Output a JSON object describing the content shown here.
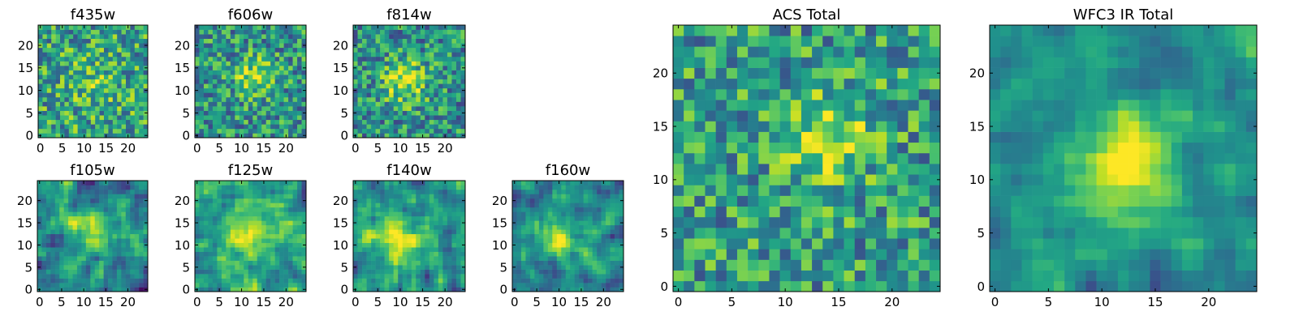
{
  "chart_data": [
    {
      "type": "heatmap",
      "title": "f435w",
      "x_ticks": [
        0,
        5,
        10,
        15,
        20
      ],
      "y_ticks": [
        0,
        5,
        10,
        15,
        20
      ],
      "xlim": [
        -0.5,
        24.5
      ],
      "ylim": [
        -0.5,
        24.5
      ],
      "grid_size": 25,
      "colormap": "viridis",
      "source": {
        "cx": 12,
        "cy": 12,
        "sigma": 4,
        "amp": 0.15,
        "seed": 11,
        "noise": 0.32,
        "base": 0.58,
        "smooth": 0
      }
    },
    {
      "type": "heatmap",
      "title": "f606w",
      "x_ticks": [
        0,
        5,
        10,
        15,
        20
      ],
      "y_ticks": [
        0,
        5,
        10,
        15,
        20
      ],
      "xlim": [
        -0.5,
        24.5
      ],
      "ylim": [
        -0.5,
        24.5
      ],
      "grid_size": 25,
      "colormap": "viridis",
      "source": {
        "cx": 13,
        "cy": 13,
        "sigma": 3,
        "amp": 0.35,
        "seed": 23,
        "noise": 0.3,
        "base": 0.52,
        "smooth": 0
      }
    },
    {
      "type": "heatmap",
      "title": "f814w",
      "x_ticks": [
        0,
        5,
        10,
        15,
        20
      ],
      "y_ticks": [
        0,
        5,
        10,
        15,
        20
      ],
      "xlim": [
        -0.5,
        24.5
      ],
      "ylim": [
        -0.5,
        24.5
      ],
      "grid_size": 25,
      "colormap": "viridis",
      "source": {
        "cx": 11,
        "cy": 12,
        "sigma": 3.5,
        "amp": 0.4,
        "seed": 37,
        "noise": 0.3,
        "base": 0.5,
        "smooth": 0
      }
    },
    {
      "type": "heatmap",
      "title": "f105w",
      "x_ticks": [
        0,
        5,
        10,
        15,
        20
      ],
      "y_ticks": [
        0,
        5,
        10,
        15,
        20
      ],
      "xlim": [
        -0.5,
        24.5
      ],
      "ylim": [
        -0.5,
        24.5
      ],
      "grid_size": 25,
      "colormap": "viridis",
      "source": {
        "cx": 13,
        "cy": 13,
        "sigma": 3.5,
        "amp": 0.45,
        "seed": 41,
        "noise": 0.35,
        "base": 0.45,
        "smooth": 1
      }
    },
    {
      "type": "heatmap",
      "title": "f125w",
      "x_ticks": [
        0,
        5,
        10,
        15,
        20
      ],
      "y_ticks": [
        0,
        5,
        10,
        15,
        20
      ],
      "xlim": [
        -0.5,
        24.5
      ],
      "ylim": [
        -0.5,
        24.5
      ],
      "grid_size": 25,
      "colormap": "viridis",
      "source": {
        "cx": 12,
        "cy": 12,
        "sigma": 5,
        "amp": 0.3,
        "seed": 53,
        "noise": 0.3,
        "base": 0.55,
        "smooth": 1
      }
    },
    {
      "type": "heatmap",
      "title": "f140w",
      "x_ticks": [
        0,
        5,
        10,
        15,
        20
      ],
      "y_ticks": [
        0,
        5,
        10,
        15,
        20
      ],
      "xlim": [
        -0.5,
        24.5
      ],
      "ylim": [
        -0.5,
        24.5
      ],
      "grid_size": 25,
      "colormap": "viridis",
      "source": {
        "cx": 9,
        "cy": 11,
        "sigma": 4.5,
        "amp": 0.35,
        "seed": 67,
        "noise": 0.32,
        "base": 0.5,
        "smooth": 1
      }
    },
    {
      "type": "heatmap",
      "title": "f160w",
      "x_ticks": [
        0,
        5,
        10,
        15,
        20
      ],
      "y_ticks": [
        0,
        5,
        10,
        15,
        20
      ],
      "xlim": [
        -0.5,
        24.5
      ],
      "ylim": [
        -0.5,
        24.5
      ],
      "grid_size": 25,
      "colormap": "viridis",
      "source": {
        "cx": 10,
        "cy": 11,
        "sigma": 3.5,
        "amp": 0.45,
        "seed": 79,
        "noise": 0.3,
        "base": 0.45,
        "smooth": 1
      }
    },
    {
      "type": "heatmap",
      "title": "ACS Total",
      "x_ticks": [
        0,
        5,
        10,
        15,
        20
      ],
      "y_ticks": [
        0,
        5,
        10,
        15,
        20
      ],
      "xlim": [
        -0.5,
        24.5
      ],
      "ylim": [
        -0.5,
        24.5
      ],
      "grid_size": 25,
      "colormap": "viridis",
      "source": {
        "cx": 14,
        "cy": 14,
        "sigma": 3,
        "amp": 0.35,
        "seed": 97,
        "noise": 0.3,
        "base": 0.55,
        "smooth": 0
      }
    },
    {
      "type": "heatmap",
      "title": "WFC3 IR Total",
      "x_ticks": [
        0,
        5,
        10,
        15,
        20
      ],
      "y_ticks": [
        0,
        5,
        10,
        15,
        20
      ],
      "xlim": [
        -0.5,
        24.5
      ],
      "ylim": [
        -0.5,
        24.5
      ],
      "grid_size": 25,
      "colormap": "viridis",
      "source": {
        "cx": 12,
        "cy": 12,
        "sigma": 4,
        "amp": 0.45,
        "seed": 101,
        "noise": 0.22,
        "base": 0.5,
        "smooth": 1
      }
    }
  ]
}
